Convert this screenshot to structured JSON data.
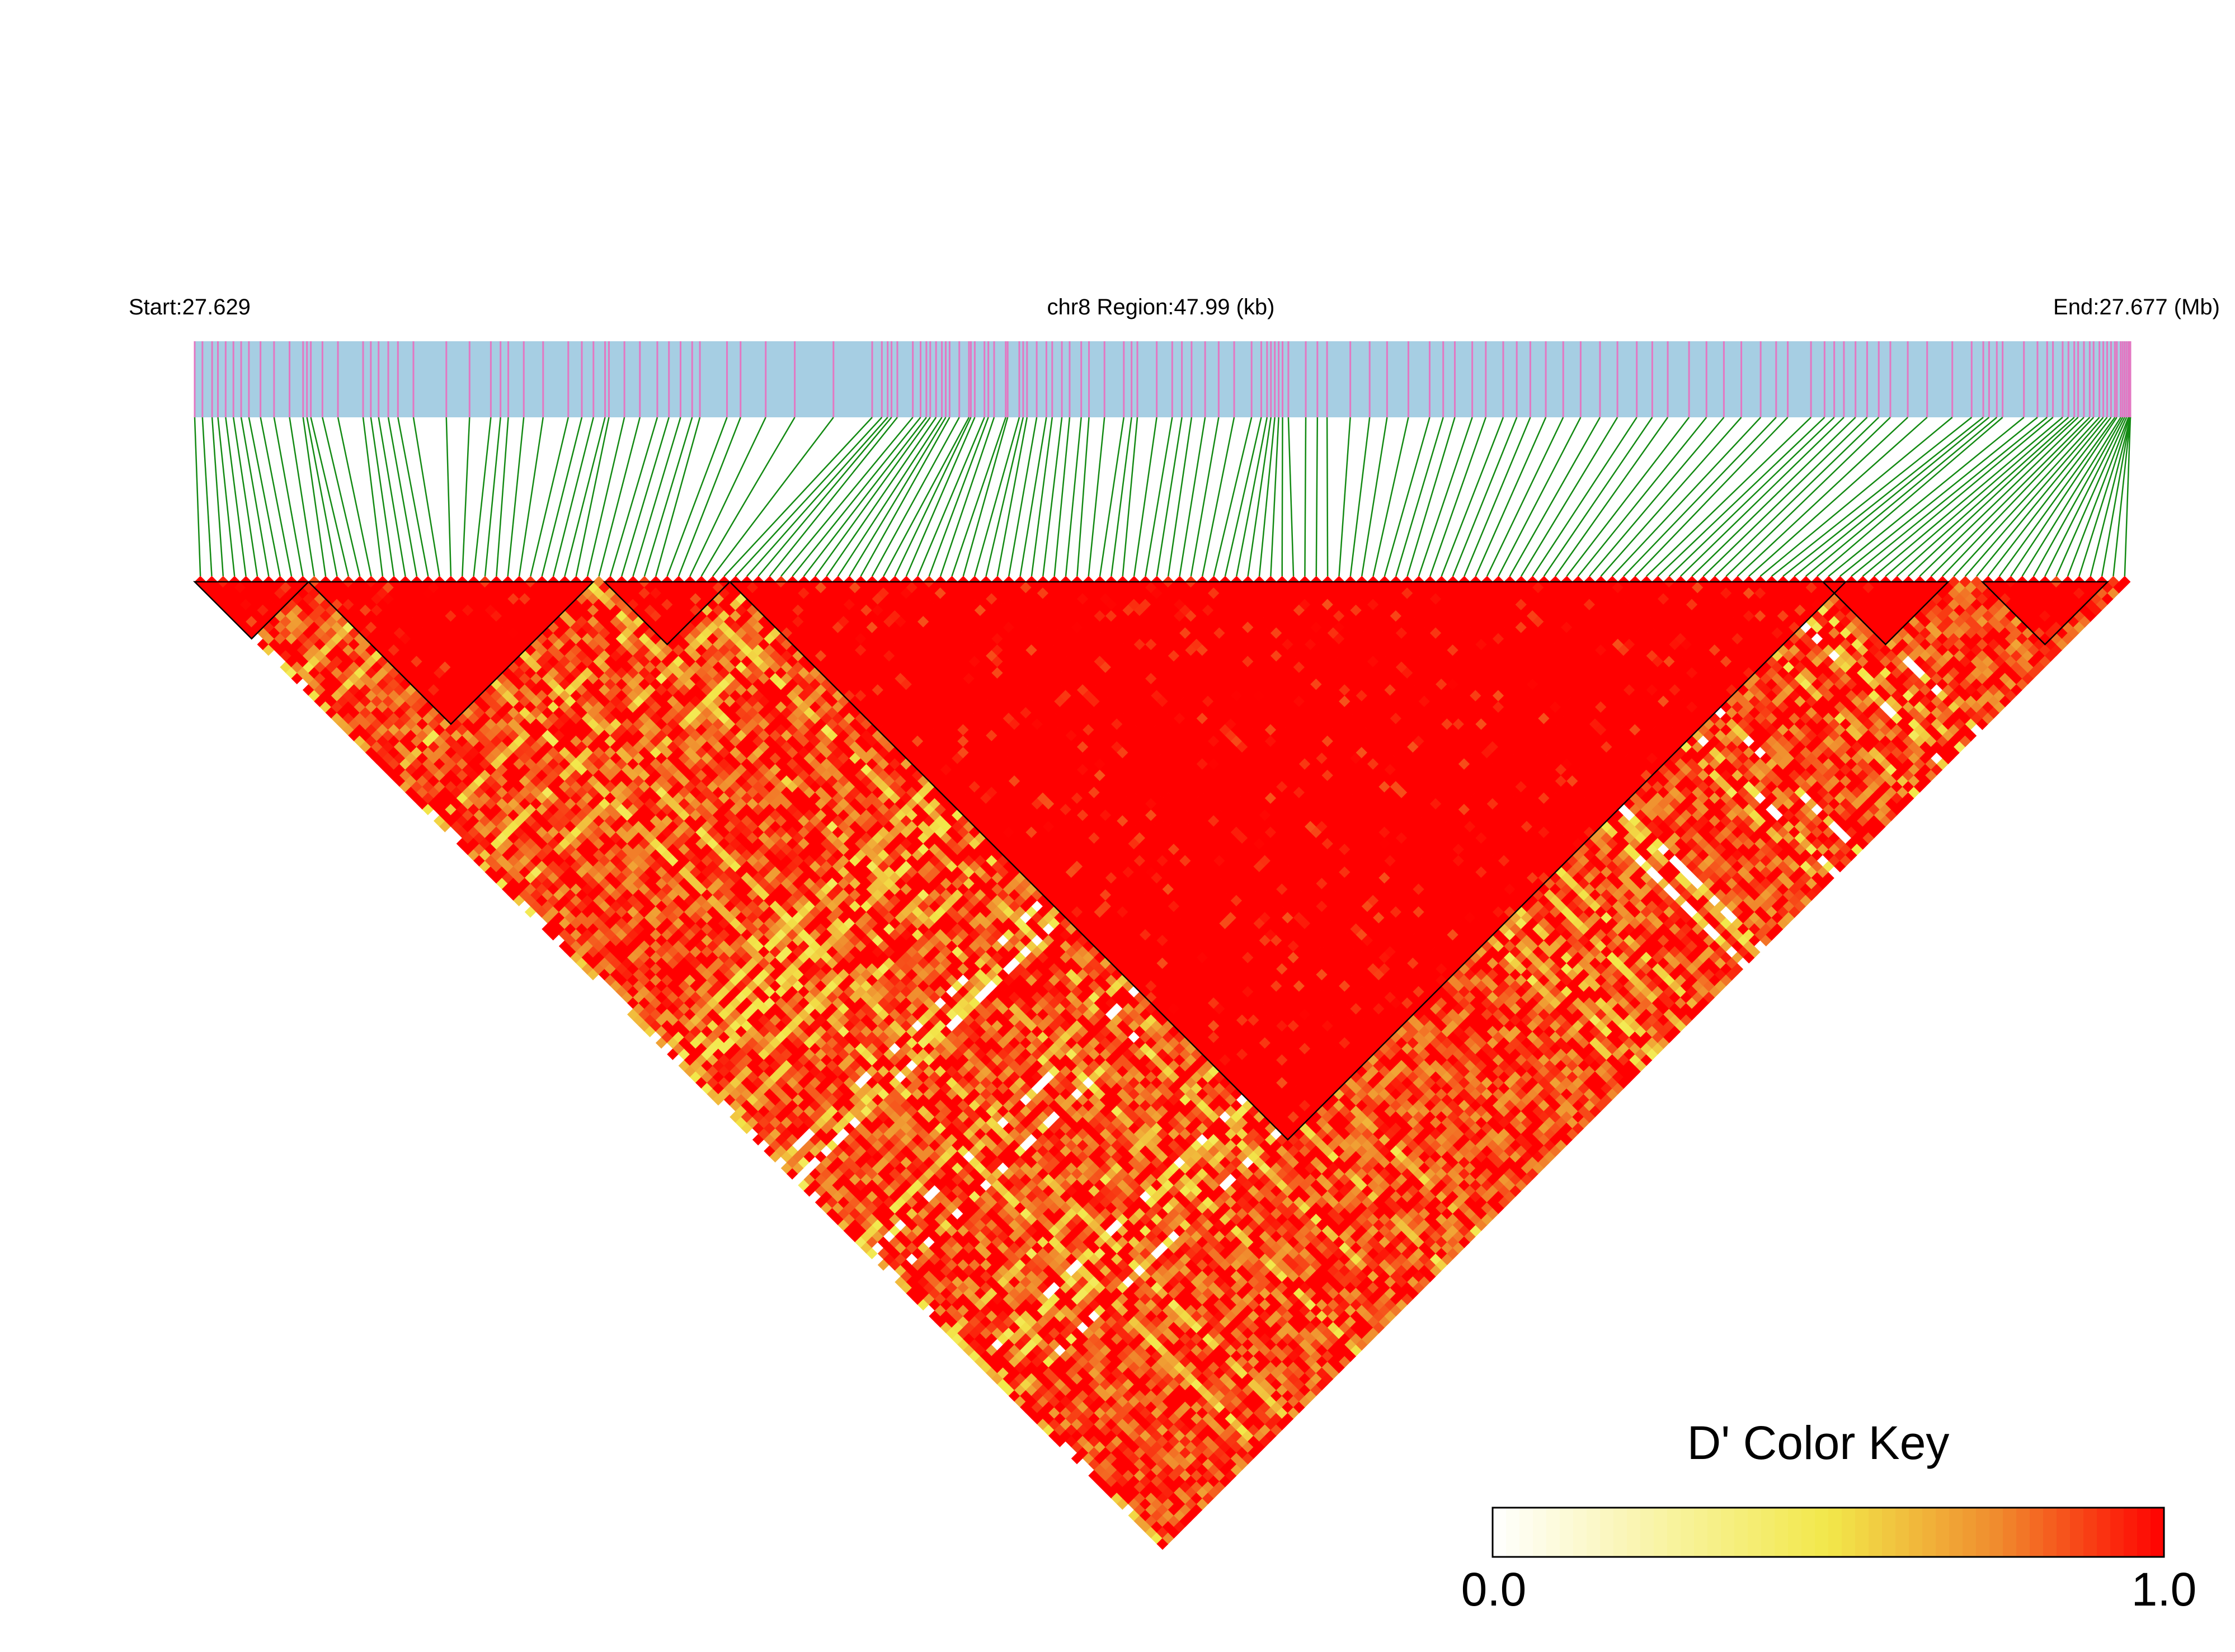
{
  "chart_data": {
    "type": "heatmap",
    "chart_kind": "ld-heatmap-triangle",
    "title": "",
    "header": {
      "start_label": "Start:27.629",
      "region_label": "chr8 Region:47.99 (kb)",
      "end_label": "End:27.677 (Mb)"
    },
    "region": {
      "chromosome": "chr8",
      "start_mb": 27.629,
      "end_mb": 27.677,
      "length_kb": 47.99
    },
    "snp_count": 170,
    "snp_positions_fraction": [
      0.0,
      0.004,
      0.009,
      0.012,
      0.016,
      0.02,
      0.024,
      0.028,
      0.034,
      0.041,
      0.049,
      0.056,
      0.058,
      0.06,
      0.066,
      0.074,
      0.087,
      0.091,
      0.095,
      0.1,
      0.105,
      0.113,
      0.13,
      0.142,
      0.153,
      0.158,
      0.162,
      0.17,
      0.18,
      0.193,
      0.2,
      0.206,
      0.212,
      0.214,
      0.222,
      0.23,
      0.239,
      0.245,
      0.251,
      0.257,
      0.261,
      0.275,
      0.282,
      0.295,
      0.31,
      0.33,
      0.35,
      0.355,
      0.358,
      0.36,
      0.363,
      0.371,
      0.375,
      0.378,
      0.38,
      0.383,
      0.386,
      0.388,
      0.39,
      0.395,
      0.4,
      0.401,
      0.403,
      0.408,
      0.41,
      0.413,
      0.419,
      0.42,
      0.426,
      0.428,
      0.43,
      0.435,
      0.44,
      0.443,
      0.448,
      0.452,
      0.458,
      0.462,
      0.47,
      0.48,
      0.484,
      0.487,
      0.497,
      0.505,
      0.51,
      0.515,
      0.522,
      0.529,
      0.537,
      0.546,
      0.551,
      0.554,
      0.556,
      0.558,
      0.56,
      0.562,
      0.565,
      0.574,
      0.58,
      0.585,
      0.597,
      0.607,
      0.616,
      0.627,
      0.638,
      0.645,
      0.651,
      0.66,
      0.667,
      0.676,
      0.683,
      0.69,
      0.698,
      0.707,
      0.716,
      0.726,
      0.735,
      0.745,
      0.753,
      0.761,
      0.772,
      0.781,
      0.79,
      0.799,
      0.809,
      0.817,
      0.823,
      0.835,
      0.842,
      0.847,
      0.852,
      0.858,
      0.864,
      0.87,
      0.876,
      0.885,
      0.895,
      0.908,
      0.918,
      0.924,
      0.927,
      0.931,
      0.934,
      0.945,
      0.952,
      0.957,
      0.96,
      0.965,
      0.968,
      0.971,
      0.973,
      0.976,
      0.979,
      0.981,
      0.984,
      0.986,
      0.988,
      0.99,
      0.992,
      0.993,
      0.995,
      0.996,
      0.997,
      0.998,
      0.999,
      0.9995,
      1.0,
      1.0,
      1.0,
      1.0
    ],
    "haplotype_blocks": [
      {
        "first_snp": 1,
        "last_snp": 10
      },
      {
        "first_snp": 11,
        "last_snp": 35
      },
      {
        "first_snp": 37,
        "last_snp": 47
      },
      {
        "first_snp": 48,
        "last_snp": 145
      },
      {
        "first_snp": 144,
        "last_snp": 154
      },
      {
        "first_snp": 158,
        "last_snp": 168
      }
    ],
    "colorscale": {
      "title": "D' Color Key",
      "min": 0.0,
      "max": 1.0,
      "min_label": "0.0",
      "max_label": "1.0",
      "colors": [
        "#ffffff",
        "#f2e84a",
        "#f08c2e",
        "#ff0000"
      ],
      "stops": [
        0.0,
        0.5,
        0.75,
        1.0
      ]
    },
    "colors": {
      "gene_track": "#a6cee3",
      "snp_tick": "#e377c2",
      "connector": "#138a13",
      "block_outline": "#000000"
    }
  }
}
